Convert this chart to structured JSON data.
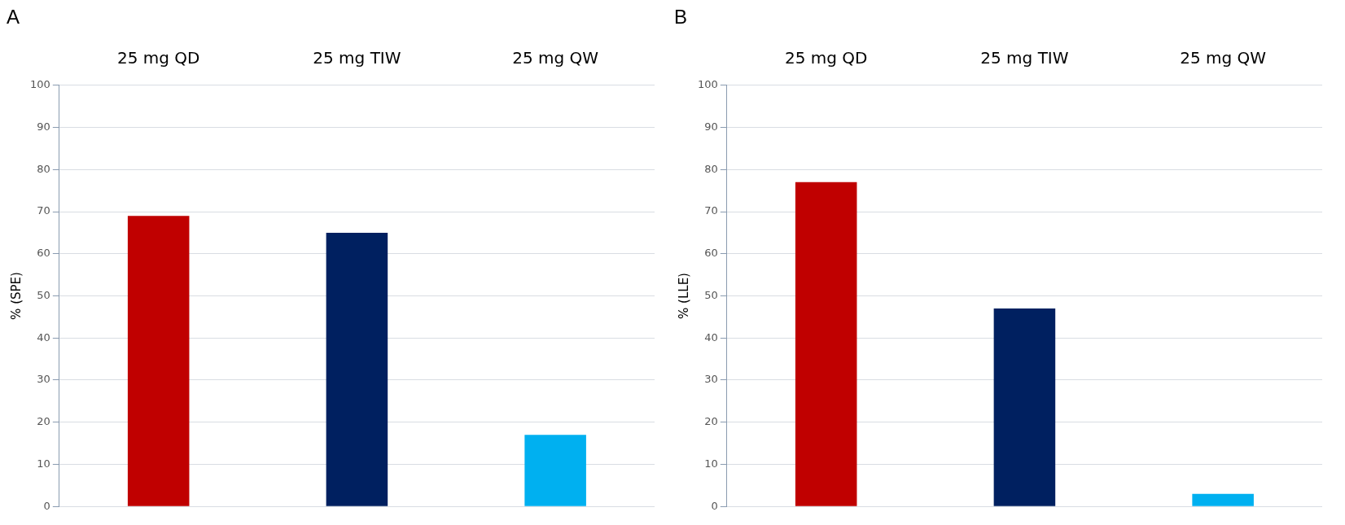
{
  "chart_data": [
    {
      "type": "bar",
      "title": "A",
      "ylabel": "% (SPE)",
      "categories": [
        "25 mg QD",
        "25 mg TIW",
        "25 mg QW"
      ],
      "values": [
        69,
        65,
        17
      ],
      "colors": [
        "#c00000",
        "#002060",
        "#00b0f0"
      ],
      "ylim": [
        0,
        100
      ],
      "yticks": [
        0,
        10,
        20,
        30,
        40,
        50,
        60,
        70,
        80,
        90,
        100
      ],
      "grid": "y"
    },
    {
      "type": "bar",
      "title": "B",
      "ylabel": "% (LLE)",
      "categories": [
        "25 mg QD",
        "25 mg TIW",
        "25 mg QW"
      ],
      "values": [
        77,
        47,
        3
      ],
      "colors": [
        "#c00000",
        "#002060",
        "#00b0f0"
      ],
      "ylim": [
        0,
        100
      ],
      "yticks": [
        0,
        10,
        20,
        30,
        40,
        50,
        60,
        70,
        80,
        90,
        100
      ],
      "grid": "y"
    }
  ]
}
